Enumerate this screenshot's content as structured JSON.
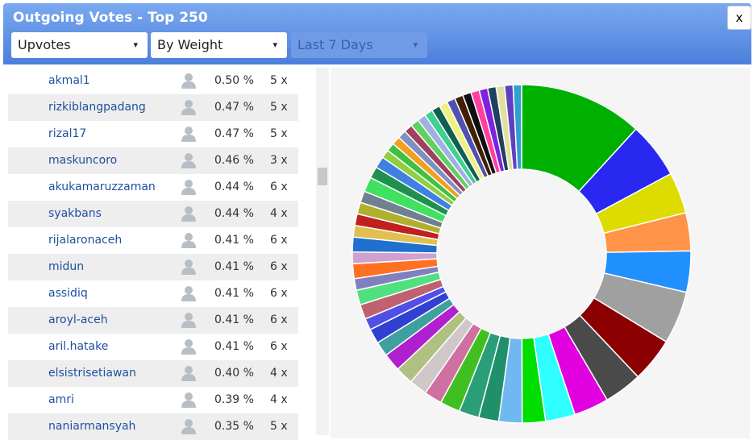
{
  "header": {
    "title": "Outgoing Votes - Top 250",
    "close": "x"
  },
  "controls": {
    "vote_type": "Upvotes",
    "sort": "By Weight",
    "period": "Last 7 Days"
  },
  "table": {
    "rows": [
      [
        "akmal1",
        "0.50 %",
        "5 x"
      ],
      [
        "rizkiblangpadang",
        "0.47 %",
        "5 x"
      ],
      [
        "rizal17",
        "0.47 %",
        "5 x"
      ],
      [
        "maskuncoro",
        "0.46 %",
        "3 x"
      ],
      [
        "akukamaruzzaman",
        "0.44 %",
        "6 x"
      ],
      [
        "syakbans",
        "0.44 %",
        "4 x"
      ],
      [
        "rijalaronaceh",
        "0.41 %",
        "6 x"
      ],
      [
        "midun",
        "0.41 %",
        "6 x"
      ],
      [
        "assidiq",
        "0.41 %",
        "6 x"
      ],
      [
        "aroyl-aceh",
        "0.41 %",
        "6 x"
      ],
      [
        "aril.hatake",
        "0.41 %",
        "6 x"
      ],
      [
        "elsistrisetiawan",
        "0.40 %",
        "4 x"
      ],
      [
        "amri",
        "0.39 %",
        "4 x"
      ],
      [
        "naniarmansyah",
        "0.35 %",
        "5 x"
      ]
    ]
  },
  "chart_data": {
    "type": "pie",
    "values": [
      11.7,
      5.3,
      3.9,
      3.6,
      3.9,
      5,
      4.2,
      3.6,
      3.3,
      2.8,
      2.2,
      2.2,
      1.9,
      1.9,
      1.9,
      1.7,
      1.7,
      1.7,
      1.7,
      1.4,
      1.4,
      1.1,
      1.4,
      1.4,
      1.1,
      1.4,
      1.1,
      1.4,
      1.1,
      1.1,
      1.1,
      1.1,
      1.4,
      1.1,
      1.1,
      0.8,
      0.8,
      0.8,
      0.8,
      0.8,
      0.8,
      0.8,
      0.8,
      0.8,
      0.8,
      0.8,
      0.8,
      0.8,
      0.8,
      0.8,
      0.8,
      0.8,
      0.8,
      0.8
    ],
    "colors": [
      "#00b000",
      "#2828f0",
      "#dcdc00",
      "#ff9448",
      "#2090ff",
      "#a0a0a0",
      "#8b0000",
      "#4a4a4a",
      "#e000e0",
      "#30ffff",
      "#00dd00",
      "#70b8f0",
      "#20906a",
      "#2a9e78",
      "#40c020",
      "#d070a0",
      "#d0c8c8",
      "#b0c080",
      "#b020d0",
      "#40a0a0",
      "#3040d0",
      "#5050e8",
      "#c06070",
      "#50e080",
      "#8080c0",
      "#ff7020",
      "#d0a0d0",
      "#2070d0",
      "#e0c050",
      "#c02020",
      "#b0b030",
      "#708090",
      "#40e060",
      "#209050",
      "#4080e0",
      "#90d040",
      "#40c040",
      "#f0a020",
      "#8090c0",
      "#a04060",
      "#60d060",
      "#a0b0e0",
      "#40d090",
      "#106050",
      "#f0f080",
      "#5050b0",
      "#402000",
      "#101010",
      "#ff40a0",
      "#8020e0",
      "#204060",
      "#e0e0a0",
      "#6040c0",
      "#30a0d0"
    ]
  }
}
